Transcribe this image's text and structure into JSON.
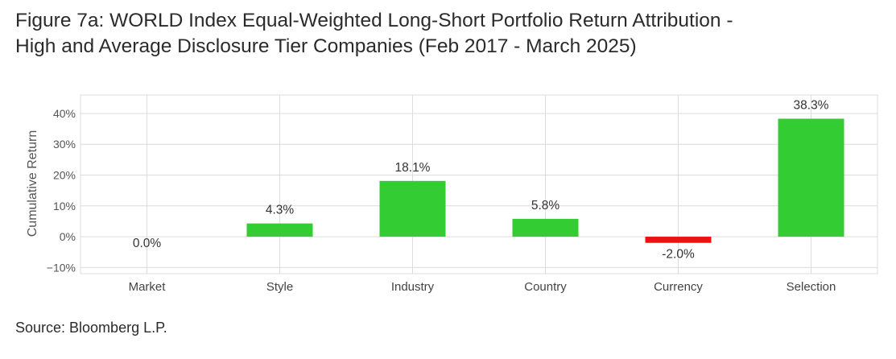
{
  "title_line1": "Figure 7a: WORLD Index Equal-Weighted Long-Short Portfolio Return Attribution -",
  "title_line2": "High and Average Disclosure Tier Companies (Feb 2017 - March 2025)",
  "source": "Source: Bloomberg L.P.",
  "chart_data": {
    "type": "bar",
    "title": "Figure 7a: WORLD Index Equal-Weighted Long-Short Portfolio Return Attribution - High and Average Disclosure Tier Companies (Feb 2017 - March 2025)",
    "xlabel": "",
    "ylabel": "Cumulative Return",
    "categories": [
      "Market",
      "Style",
      "Industry",
      "Country",
      "Currency",
      "Selection"
    ],
    "values": [
      0.0,
      4.3,
      18.1,
      5.8,
      -2.0,
      38.3
    ],
    "data_labels": [
      "0.0%",
      "4.3%",
      "18.1%",
      "5.8%",
      "-2.0%",
      "38.3%"
    ],
    "ylim": [
      -12,
      46
    ],
    "yticks": [
      -10,
      0,
      10,
      20,
      30,
      40
    ],
    "ytick_labels": [
      "−10%",
      "0%",
      "10%",
      "20%",
      "30%",
      "40%"
    ],
    "grid": true,
    "colors": {
      "positive": "#33cc33",
      "negative": "#ee1111",
      "grid": "#dcdcdc"
    }
  }
}
